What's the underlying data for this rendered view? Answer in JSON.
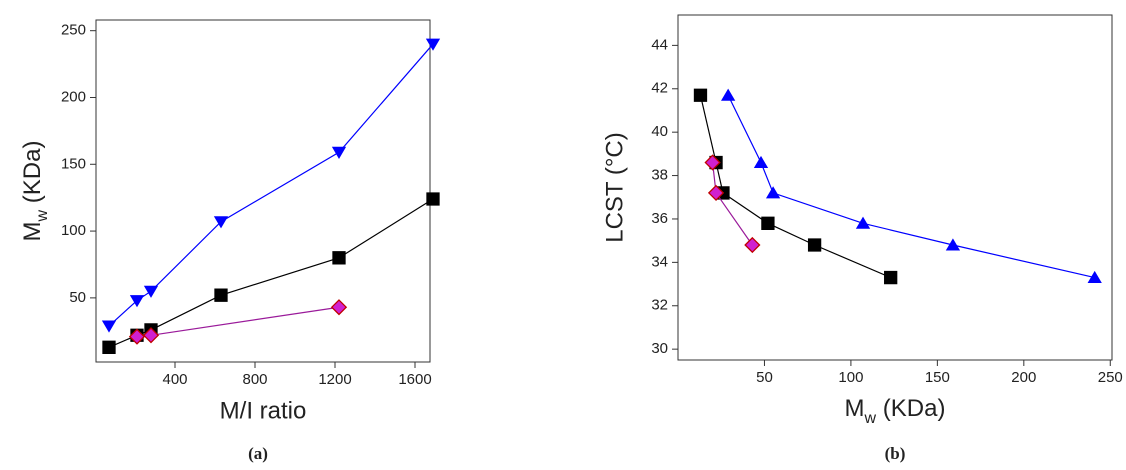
{
  "chart_data": [
    {
      "type": "line",
      "caption": "(a)",
      "xlabel": "M/I ratio",
      "ylabel": {
        "main": "M",
        "sub": "w",
        "rest": " (KDa)"
      },
      "xlim": [
        5,
        1675
      ],
      "xticks": [
        400,
        800,
        1200,
        1600
      ],
      "ylim": [
        2,
        258
      ],
      "yticks": [
        50,
        100,
        150,
        200,
        250
      ],
      "series": [
        {
          "color": "#0000ff",
          "fill": "#0000ff",
          "edgecolor": "#0000ff",
          "marker": "triangle-down",
          "x": [
            70,
            210,
            280,
            630,
            1220,
            1690
          ],
          "values": [
            29,
            48,
            55,
            107,
            159,
            240
          ]
        },
        {
          "color": "#000000",
          "fill": "#000000",
          "edgecolor": "#000000",
          "marker": "square",
          "x": [
            70,
            210,
            280,
            630,
            1220,
            1690
          ],
          "values": [
            13,
            22,
            26,
            52,
            80,
            124
          ]
        },
        {
          "color": "#9a1a9a",
          "fill": "#d020d0",
          "edgecolor": "#c00000",
          "marker": "diamond",
          "x": [
            210,
            280,
            1220
          ],
          "values": [
            21,
            22,
            43
          ]
        }
      ]
    },
    {
      "type": "line",
      "caption": "(b)",
      "xlabel": {
        "main": "M",
        "sub": "w",
        "rest": " (KDa)"
      },
      "ylabel": "LCST (°C)",
      "xlim": [
        0,
        251
      ],
      "xticks": [
        50,
        100,
        150,
        200,
        250
      ],
      "ylim": [
        29.5,
        45.4
      ],
      "yticks": [
        30,
        32,
        34,
        36,
        38,
        40,
        42,
        44
      ],
      "series": [
        {
          "color": "#0000ff",
          "fill": "#0000ff",
          "edgecolor": "#0000ff",
          "marker": "triangle-up",
          "x": [
            29,
            48,
            55,
            107,
            159,
            241
          ],
          "values": [
            41.7,
            38.6,
            37.2,
            35.8,
            34.8,
            33.3
          ]
        },
        {
          "color": "#000000",
          "fill": "#000000",
          "edgecolor": "#000000",
          "marker": "square",
          "x": [
            13,
            22,
            26,
            52,
            79,
            123
          ],
          "values": [
            41.7,
            38.6,
            37.2,
            35.8,
            34.8,
            33.3
          ]
        },
        {
          "color": "#9a1a9a",
          "fill": "#d020d0",
          "edgecolor": "#c00000",
          "marker": "diamond",
          "x": [
            20,
            22,
            43
          ],
          "values": [
            38.6,
            37.2,
            34.8
          ]
        }
      ]
    }
  ]
}
